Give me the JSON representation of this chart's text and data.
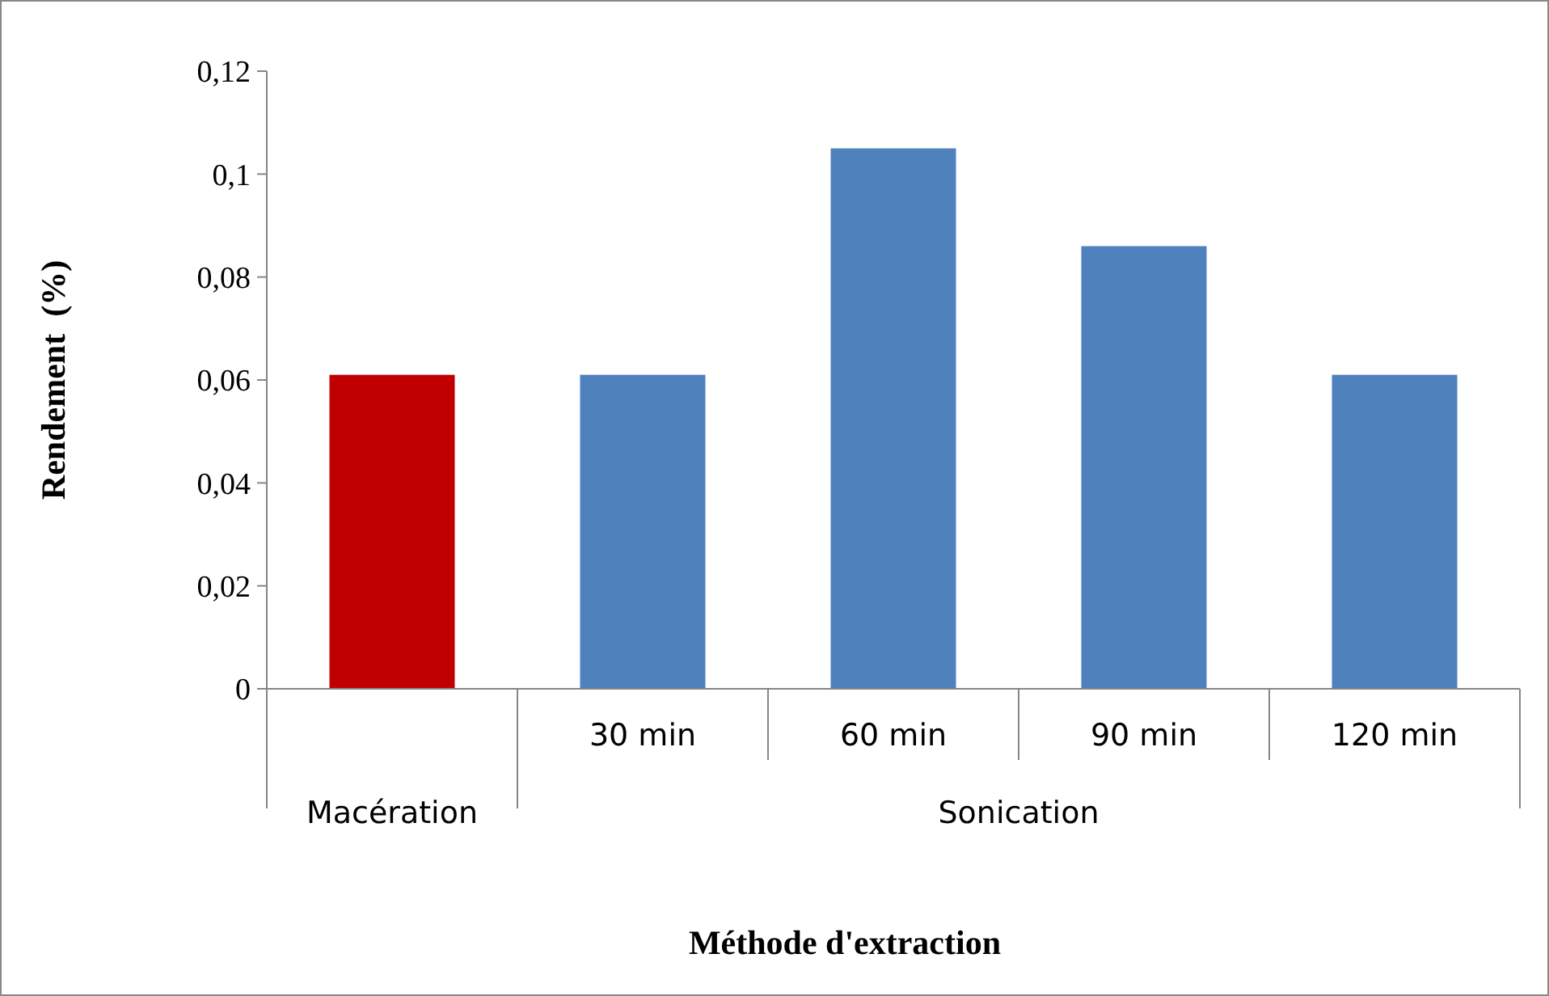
{
  "chart_data": {
    "type": "bar",
    "xlabel": "Méthode d'extraction",
    "ylabel": "Rendement  (%)",
    "categories": [
      null,
      "30 min",
      "60 min",
      "90 min",
      "120 min"
    ],
    "values": [
      0.061,
      0.061,
      0.105,
      0.086,
      0.061
    ],
    "colors": [
      "#c00000",
      "#4f81bd",
      "#4f81bd",
      "#4f81bd",
      "#4f81bd"
    ],
    "ylim": [
      0,
      0.12
    ],
    "yticks": [
      0,
      {
        "value": 0.02,
        "label": "0,02"
      },
      {
        "value": 0.04,
        "label": "0,04"
      },
      {
        "value": 0.06,
        "label": "0,06"
      },
      {
        "value": 0.08,
        "label": "0,08"
      },
      {
        "value": 0.1,
        "label": "0,1"
      },
      {
        "value": 0.12,
        "label": "0,12"
      }
    ],
    "annotations": [
      "Macération",
      "Sonication"
    ],
    "grid": false
  }
}
